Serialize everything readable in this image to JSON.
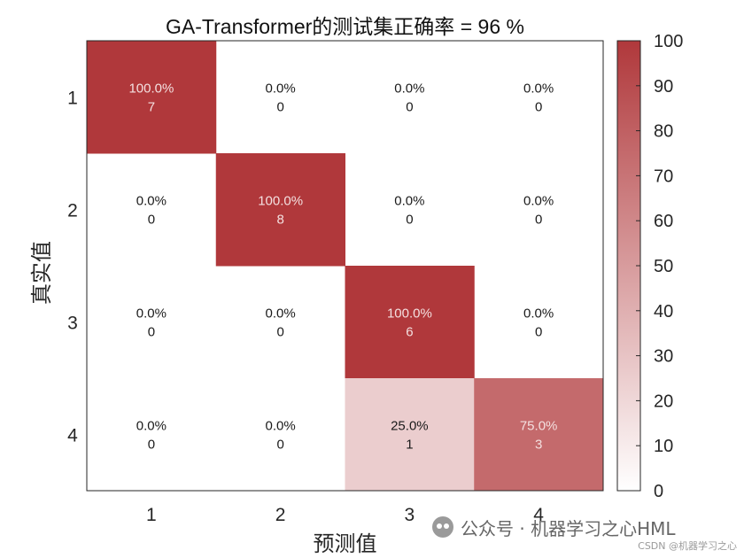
{
  "chart_data": {
    "type": "heatmap",
    "title": "GA-Transformer的测试集正确率 = 96 %",
    "xlabel": "预测值",
    "ylabel": "真实值",
    "x_categories": [
      "1",
      "2",
      "3",
      "4"
    ],
    "y_categories": [
      "1",
      "2",
      "3",
      "4"
    ],
    "counts": [
      [
        7,
        0,
        0,
        0
      ],
      [
        0,
        8,
        0,
        0
      ],
      [
        0,
        0,
        6,
        0
      ],
      [
        0,
        0,
        1,
        3
      ]
    ],
    "percent_labels": [
      [
        "100.0%",
        "0.0%",
        "0.0%",
        "0.0%"
      ],
      [
        "0.0%",
        "100.0%",
        "0.0%",
        "0.0%"
      ],
      [
        "0.0%",
        "0.0%",
        "100.0%",
        "0.0%"
      ],
      [
        "0.0%",
        "0.0%",
        "25.0%",
        "75.0%"
      ]
    ],
    "percent_values": [
      [
        100,
        0,
        0,
        0
      ],
      [
        0,
        100,
        0,
        0
      ],
      [
        0,
        0,
        100,
        0
      ],
      [
        0,
        0,
        25,
        75
      ]
    ],
    "colorbar": {
      "min": 0,
      "max": 100,
      "ticks": [
        "0",
        "10",
        "20",
        "30",
        "40",
        "50",
        "60",
        "70",
        "80",
        "90",
        "100"
      ],
      "color_low": "#ffffff",
      "color_high": "#b0383b"
    },
    "text_color_dark": "#1a1a1a",
    "text_color_light": "#f4e0e0"
  },
  "watermark": {
    "text": "公众号 · 机器学习之心HML",
    "icon": "wechat-icon"
  },
  "credit": "CSDN @机器学习之心"
}
